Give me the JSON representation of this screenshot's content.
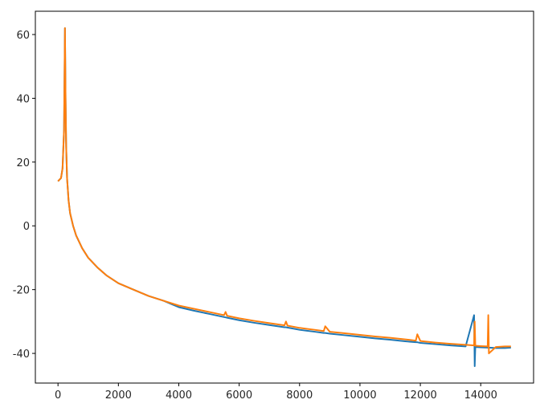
{
  "chart_data": {
    "type": "line",
    "x": [
      0,
      100,
      150,
      200,
      230,
      250,
      270,
      300,
      350,
      400,
      500,
      600,
      800,
      1000,
      1300,
      1600,
      2000,
      2500,
      3000,
      3500,
      4000,
      4500,
      5000,
      5500,
      5550,
      5600,
      6000,
      6500,
      7000,
      7500,
      7550,
      7600,
      8000,
      8500,
      8800,
      8850,
      9000,
      9500,
      10000,
      10500,
      11000,
      11500,
      11850,
      11900,
      12000,
      12500,
      13000,
      13500,
      13780,
      13800,
      13820,
      14000,
      14230,
      14250,
      14270,
      14500,
      14800,
      15000
    ],
    "series": [
      {
        "color": "#1f77b4",
        "values": [
          14,
          15,
          18,
          30,
          62,
          40,
          25,
          15,
          8,
          4,
          0,
          -3,
          -7,
          -10,
          -13,
          -15.5,
          -18,
          -20,
          -22,
          -23.5,
          -25.5,
          -26.6,
          -27.6,
          -28.6,
          -28.7,
          -28.8,
          -29.6,
          -30.4,
          -31.1,
          -31.8,
          -31.8,
          -31.9,
          -32.6,
          -33.2,
          -33.6,
          -33.6,
          -33.8,
          -34.3,
          -34.8,
          -35.3,
          -35.7,
          -36.2,
          -36.5,
          -36.5,
          -36.7,
          -37.1,
          -37.5,
          -37.8,
          -28,
          -44,
          -38,
          -38.1,
          -38.2,
          -38.2,
          -38.2,
          -38.3,
          -38.3,
          -38.2
        ]
      },
      {
        "color": "#ff7f0e",
        "values": [
          14,
          15,
          18,
          30,
          62,
          40,
          25,
          15,
          8,
          4,
          0,
          -3,
          -7,
          -10,
          -13,
          -15.5,
          -18,
          -20,
          -22,
          -23.5,
          -25,
          -26,
          -27,
          -28,
          -27,
          -28.2,
          -29,
          -29.8,
          -30.5,
          -31.2,
          -30,
          -31.3,
          -32,
          -32.6,
          -33,
          -31.5,
          -33.2,
          -33.7,
          -34.2,
          -34.7,
          -35.1,
          -35.6,
          -36,
          -34,
          -36.1,
          -36.6,
          -37,
          -37.3,
          -37.5,
          -30,
          -37.6,
          -37.7,
          -37.8,
          -28,
          -40,
          -38,
          -37.8,
          -37.8
        ]
      }
    ],
    "xlim": [
      -750,
      15750
    ],
    "ylim": [
      -49.3,
      67.3
    ],
    "xticks": [
      0,
      2000,
      4000,
      6000,
      8000,
      10000,
      12000,
      14000
    ],
    "yticks": [
      -40,
      -20,
      0,
      20,
      40,
      60
    ],
    "grid": false
  }
}
